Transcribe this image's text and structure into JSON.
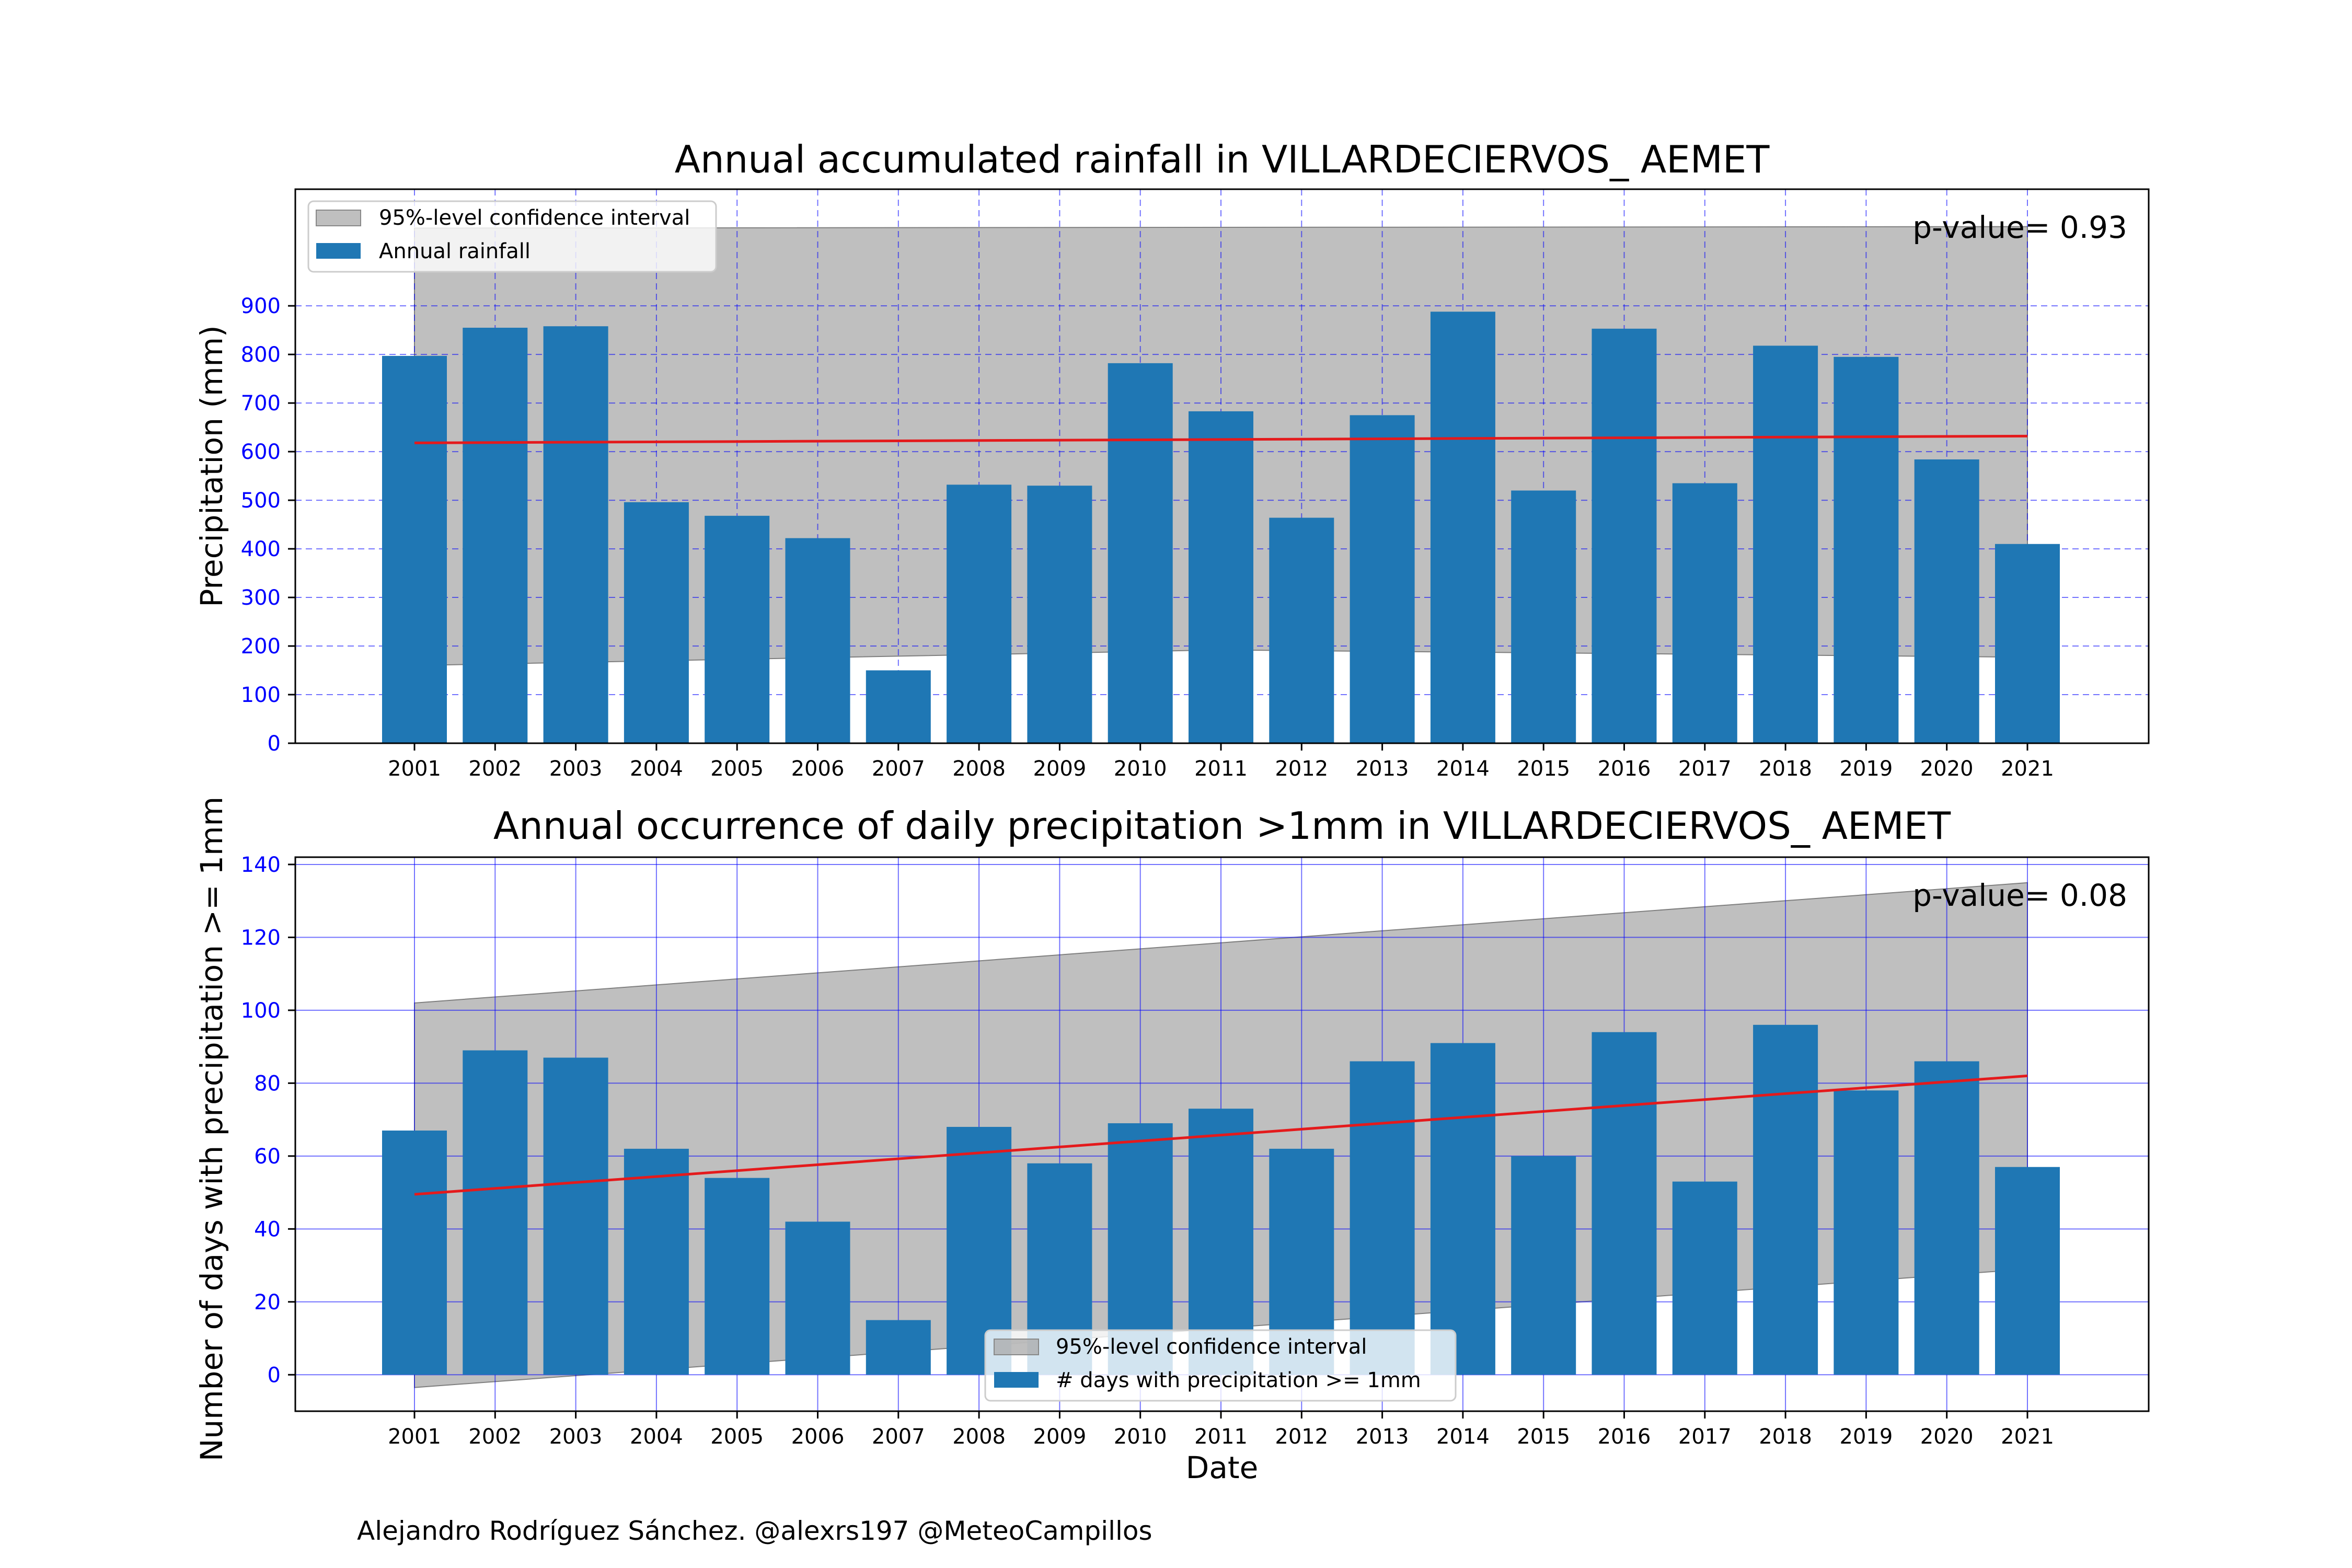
{
  "credit": "Alejandro Rodríguez Sánchez. @alexrs197 @MeteoCampillos",
  "chart_data": [
    {
      "type": "bar",
      "title": "Annual accumulated rainfall in VILLARDECIERVOS_ AEMET",
      "xlabel": "",
      "ylabel": "Precipitation (mm)",
      "categories": [
        "2001",
        "2002",
        "2003",
        "2004",
        "2005",
        "2006",
        "2007",
        "2008",
        "2009",
        "2010",
        "2011",
        "2012",
        "2013",
        "2014",
        "2015",
        "2016",
        "2017",
        "2018",
        "2019",
        "2020",
        "2021"
      ],
      "series": [
        {
          "name": "Annual rainfall",
          "values": [
            797,
            855,
            858,
            496,
            468,
            422,
            150,
            532,
            530,
            782,
            683,
            464,
            675,
            888,
            520,
            853,
            535,
            818,
            795,
            584,
            410
          ]
        }
      ],
      "trend": [
        618,
        632
      ],
      "ci_upper": [
        1060,
        1063
      ],
      "ci_lower": [
        160,
        177
      ],
      "ci_mid": 192,
      "ylim": [
        0,
        1140
      ],
      "yticks": [
        0,
        100,
        200,
        300,
        400,
        500,
        600,
        700,
        800,
        900
      ],
      "grid": true,
      "grid_style": "dashed",
      "legend": {
        "placement": "top-left",
        "entries": [
          "95%-level confidence interval",
          "Annual rainfall"
        ]
      },
      "annotation": "p-value= 0.93",
      "colors": {
        "bar": "#1f77b4",
        "trend": "#e41a1c",
        "ci": "#a9a9a9",
        "grid": "#0000ff",
        "tick": "#0000ff"
      }
    },
    {
      "type": "bar",
      "title": "Annual occurrence of daily precipitation >1mm in VILLARDECIERVOS_ AEMET",
      "xlabel": "Date",
      "ylabel": "Number of days with precipitation >= 1mm",
      "categories": [
        "2001",
        "2002",
        "2003",
        "2004",
        "2005",
        "2006",
        "2007",
        "2008",
        "2009",
        "2010",
        "2011",
        "2012",
        "2013",
        "2014",
        "2015",
        "2016",
        "2017",
        "2018",
        "2019",
        "2020",
        "2021"
      ],
      "series": [
        {
          "name": "# days with precipitation >= 1mm",
          "values": [
            67,
            89,
            87,
            62,
            54,
            42,
            15,
            68,
            58,
            69,
            73,
            62,
            86,
            91,
            60,
            94,
            53,
            96,
            78,
            86,
            57
          ]
        }
      ],
      "trend": [
        49.5,
        82
      ],
      "ci_upper": [
        102,
        135
      ],
      "ci_lower": [
        -3.5,
        29
      ],
      "ylim": [
        -10,
        142
      ],
      "yticks": [
        0,
        20,
        40,
        60,
        80,
        100,
        120,
        140
      ],
      "grid": true,
      "grid_style": "solid",
      "legend": {
        "placement": "bottom-center",
        "entries": [
          "95%-level confidence interval",
          "# days with precipitation >= 1mm"
        ]
      },
      "annotation": "p-value= 0.08",
      "colors": {
        "bar": "#1f77b4",
        "trend": "#e41a1c",
        "ci": "#a9a9a9",
        "grid": "#0000ff",
        "tick": "#0000ff"
      }
    }
  ]
}
